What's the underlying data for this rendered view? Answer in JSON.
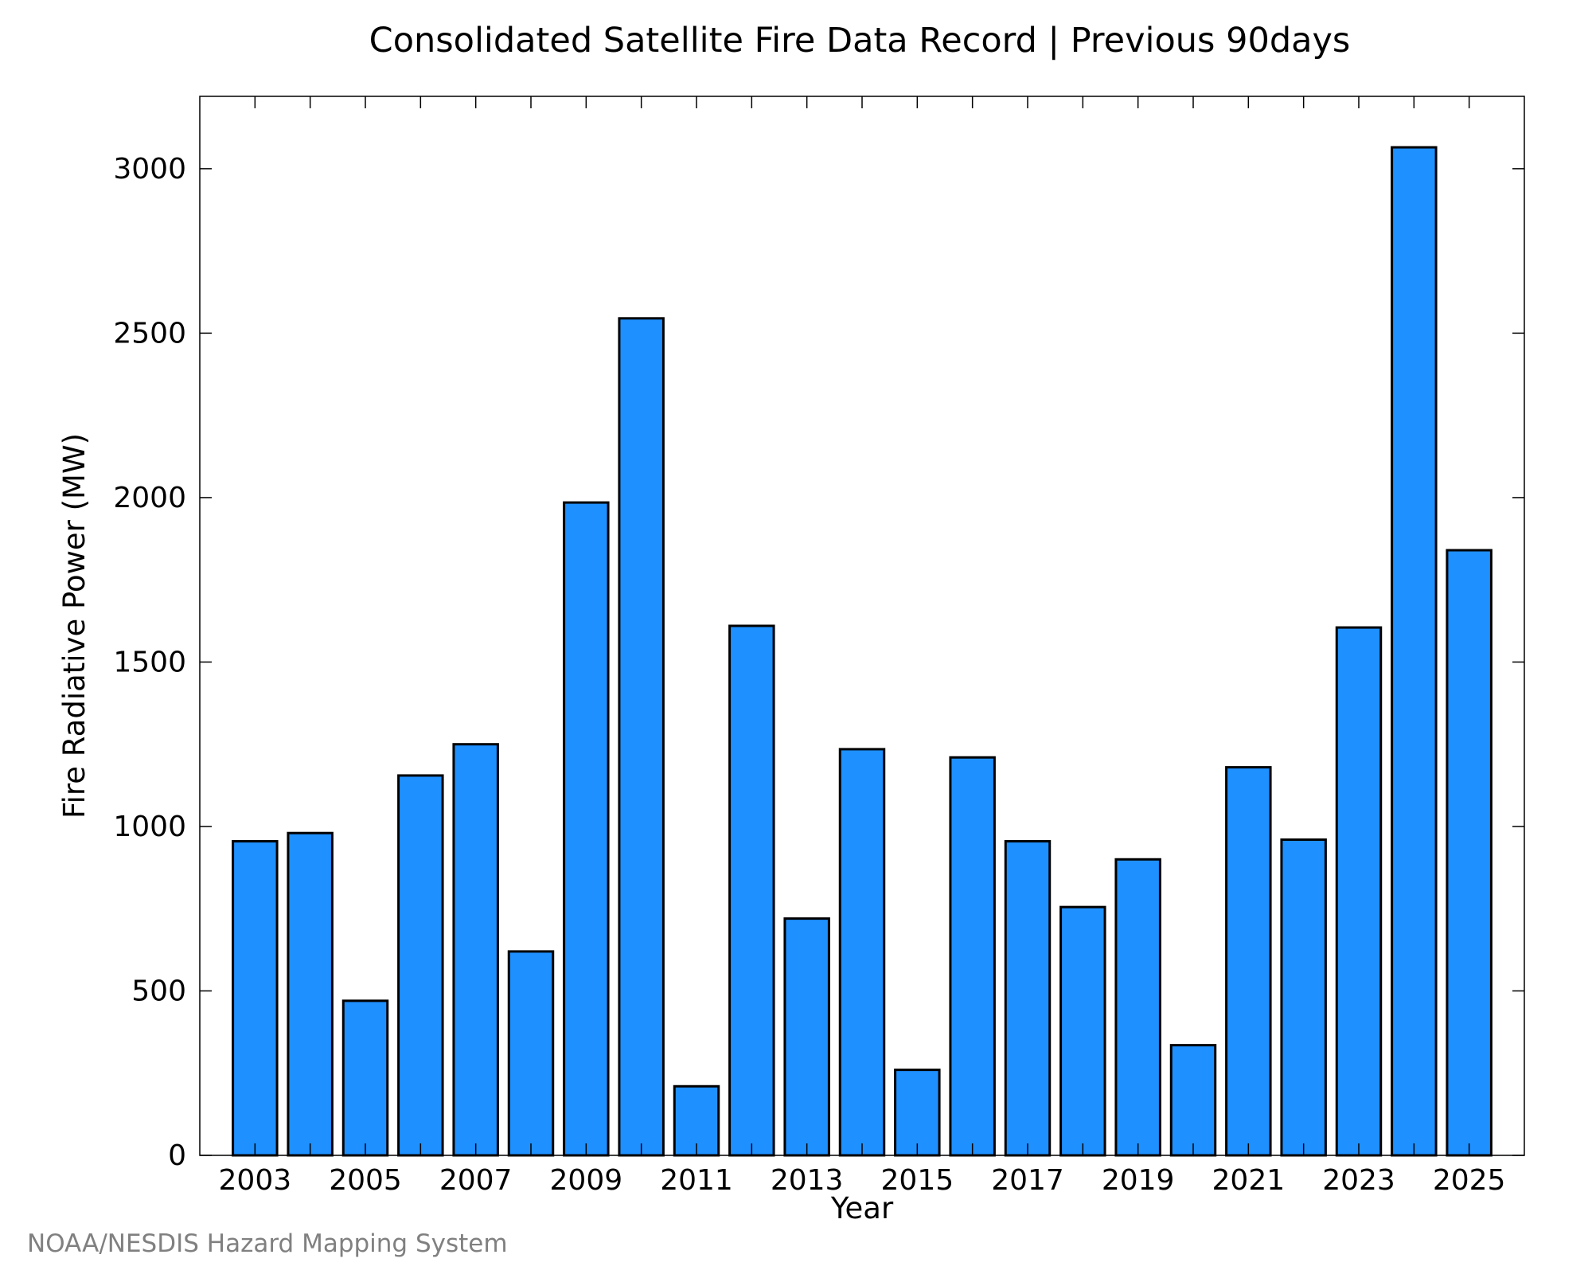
{
  "chart_data": {
    "type": "bar",
    "title": "Consolidated Satellite Fire Data Record | Previous 90days",
    "xlabel": "Year",
    "ylabel": "Fire Radiative Power (MW)",
    "categories": [
      "2003",
      "2004",
      "2005",
      "2006",
      "2007",
      "2008",
      "2009",
      "2010",
      "2011",
      "2012",
      "2013",
      "2014",
      "2015",
      "2016",
      "2017",
      "2018",
      "2019",
      "2020",
      "2021",
      "2022",
      "2023",
      "2024",
      "2025"
    ],
    "values": [
      955,
      980,
      470,
      1155,
      1250,
      620,
      1985,
      2545,
      210,
      1610,
      720,
      1235,
      260,
      1210,
      955,
      755,
      900,
      335,
      1180,
      960,
      1605,
      3065,
      1840
    ],
    "x_tick_labels": [
      "2003",
      "2005",
      "2007",
      "2009",
      "2011",
      "2013",
      "2015",
      "2017",
      "2019",
      "2021",
      "2023",
      "2025"
    ],
    "y_tick_labels": [
      "0",
      "500",
      "1000",
      "1500",
      "2000",
      "2500",
      "3000"
    ],
    "y_ticks": [
      0,
      500,
      1000,
      1500,
      2000,
      2500,
      3000
    ],
    "ylim": [
      0,
      3220
    ],
    "xlim": [
      2002,
      2026
    ],
    "grid": false,
    "legend": "none",
    "bar_color": "#1e90ff",
    "edge_color": "#000000"
  },
  "footer": {
    "credit": "NOAA/NESDIS Hazard Mapping System",
    "credit_color": "#808080"
  }
}
